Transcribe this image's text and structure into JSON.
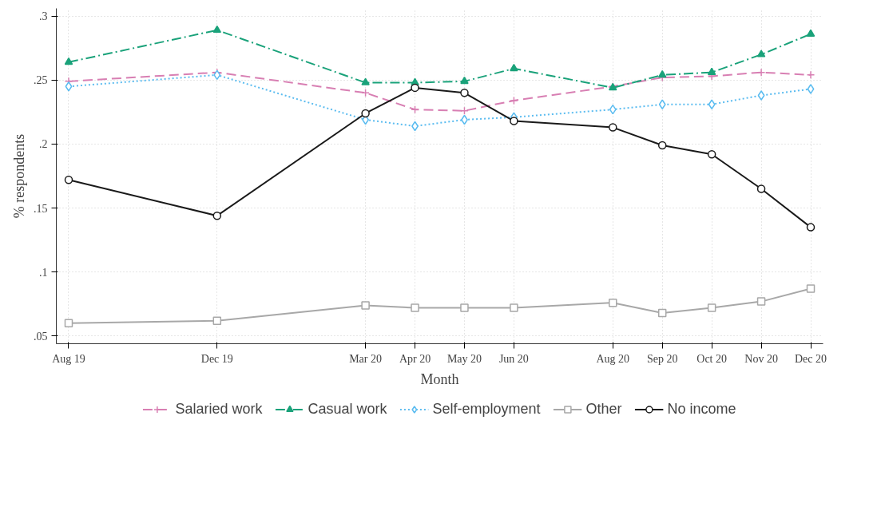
{
  "chart_data": {
    "type": "line",
    "xlabel": "Month",
    "ylabel": "% respondents",
    "categories": [
      "Aug 19",
      null,
      null,
      "Dec 19",
      null,
      null,
      "Mar 20",
      "Apr 20",
      "May 20",
      "Jun 20",
      null,
      "Aug 20",
      "Sep 20",
      "Oct 20",
      "Nov 20",
      "Dec 20"
    ],
    "ylim": [
      0.044,
      0.306
    ],
    "yticks": [
      {
        "value": 0.05,
        "label": ".05"
      },
      {
        "value": 0.1,
        "label": ".1"
      },
      {
        "value": 0.15,
        "label": ".15"
      },
      {
        "value": 0.2,
        "label": ".2"
      },
      {
        "value": 0.25,
        "label": ".25"
      },
      {
        "value": 0.3,
        "label": ".3"
      }
    ],
    "grid": true,
    "legend": "bottom",
    "series": [
      {
        "name": "Salaried work",
        "color": "#d87fb3",
        "marker": "cross",
        "line_style": "dashed",
        "values": [
          0.249,
          null,
          null,
          0.256,
          null,
          null,
          0.24,
          0.227,
          0.226,
          0.234,
          null,
          0.245,
          0.252,
          0.253,
          0.256,
          0.254
        ]
      },
      {
        "name": "Casual work",
        "color": "#1aa27a",
        "marker": "triangle",
        "line_style": "dashdot",
        "values": [
          0.264,
          null,
          null,
          0.289,
          null,
          null,
          0.248,
          0.248,
          0.249,
          0.259,
          null,
          0.244,
          0.254,
          0.256,
          0.27,
          0.286
        ]
      },
      {
        "name": "Self-employment",
        "color": "#5bbcf0",
        "marker": "diamond",
        "line_style": "dotted",
        "values": [
          0.245,
          null,
          null,
          0.254,
          null,
          null,
          0.219,
          0.214,
          0.219,
          0.221,
          null,
          0.227,
          0.231,
          0.231,
          0.238,
          0.243
        ]
      },
      {
        "name": "Other",
        "color": "#a8a8a8",
        "marker": "square",
        "line_style": "solid",
        "values": [
          0.06,
          null,
          null,
          0.062,
          null,
          null,
          0.074,
          0.072,
          0.072,
          0.072,
          null,
          0.076,
          0.068,
          0.072,
          0.077,
          0.087
        ]
      },
      {
        "name": "No income",
        "color": "#1a1a1a",
        "marker": "circle",
        "line_style": "solid",
        "values": [
          0.172,
          null,
          null,
          0.144,
          null,
          null,
          0.224,
          0.244,
          0.24,
          0.218,
          null,
          0.213,
          0.199,
          0.192,
          0.165,
          0.135
        ]
      }
    ]
  }
}
